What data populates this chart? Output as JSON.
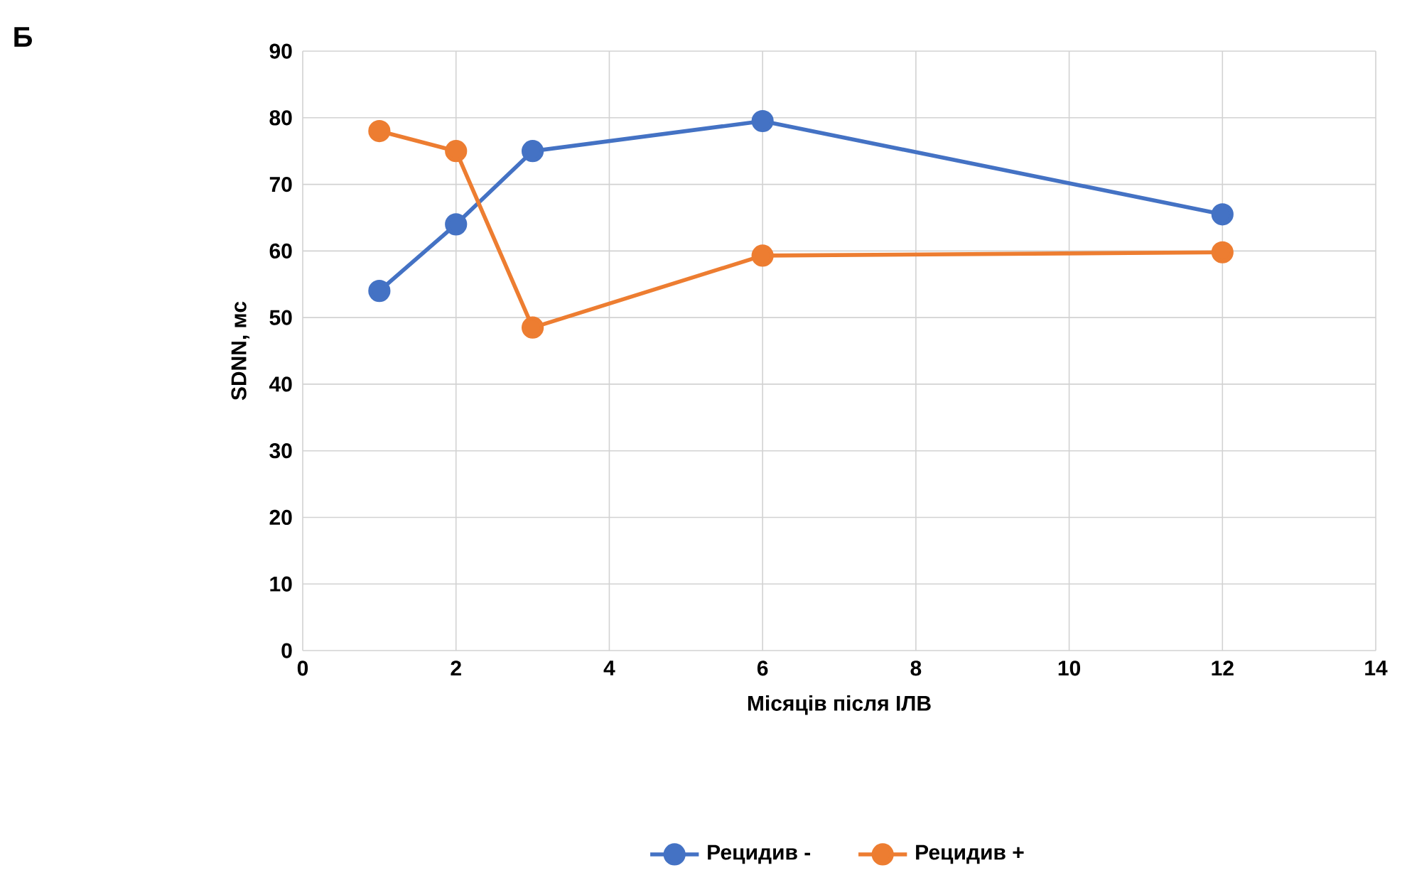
{
  "chart_data": {
    "type": "line",
    "xlabel": "Місяців після ІЛВ",
    "ylabel": "SDNN, мс",
    "x": [
      1,
      2,
      3,
      6,
      12
    ],
    "series": [
      {
        "name": "Рецидив -",
        "color": "#4472c4",
        "values": [
          54,
          64,
          75,
          79.5,
          65.5
        ]
      },
      {
        "name": "Рецидив +",
        "color": "#ed7d31",
        "values": [
          78,
          75,
          48.5,
          59.3,
          59.8
        ]
      }
    ],
    "xlim": [
      0,
      14
    ],
    "xticks": [
      0,
      2,
      4,
      6,
      8,
      10,
      12,
      14
    ],
    "ylim": [
      0,
      90
    ],
    "yticks": [
      0,
      10,
      20,
      30,
      40,
      50,
      60,
      70,
      80,
      90
    ],
    "grid": true,
    "legend": "bottom",
    "marker": "circle",
    "line_style": "solid",
    "annotations": [
      "Б"
    ]
  }
}
